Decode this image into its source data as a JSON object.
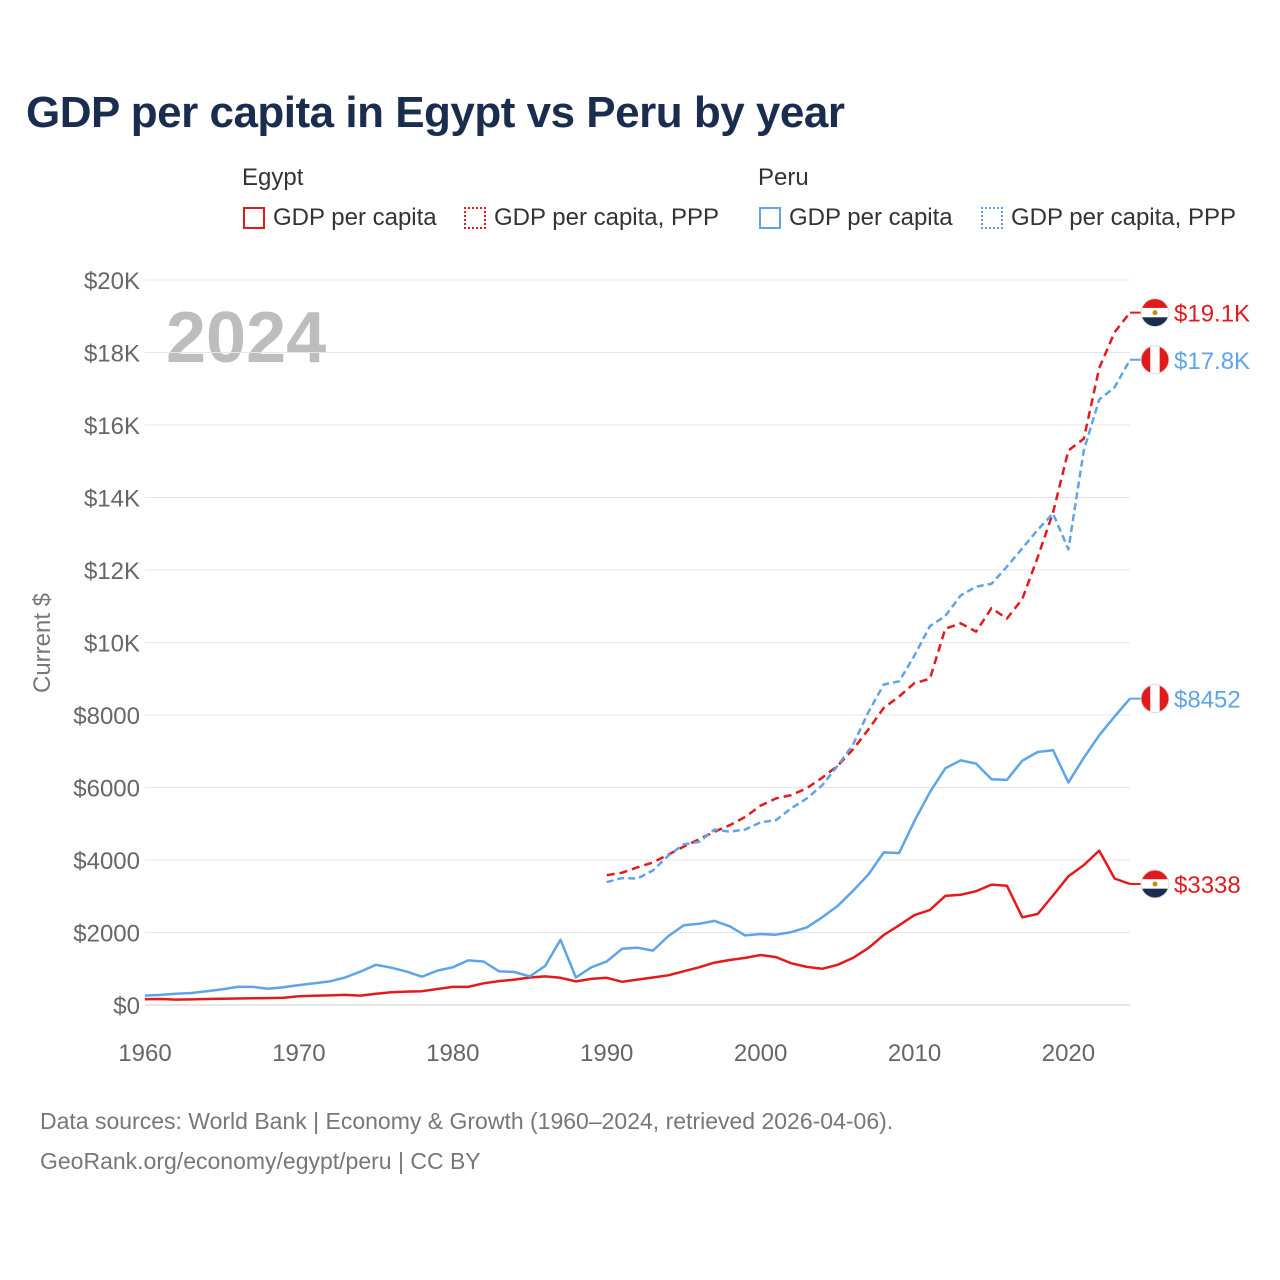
{
  "title": "GDP per capita in Egypt vs Peru by year",
  "legend": {
    "groups": [
      {
        "name": "Egypt",
        "items": [
          {
            "label": "GDP per capita",
            "style": "solid",
            "color": "#e31a1c"
          },
          {
            "label": "GDP per capita, PPP",
            "style": "dotted",
            "color": "#e31a1c"
          }
        ]
      },
      {
        "name": "Peru",
        "items": [
          {
            "label": "GDP per capita",
            "style": "solid",
            "color": "#5ea4e6"
          },
          {
            "label": "GDP per capita, PPP",
            "style": "dotted",
            "color": "#5ea4e6"
          }
        ]
      }
    ]
  },
  "year_watermark": "2024",
  "footer": {
    "line1": "Data sources: World Bank | Economy & Growth (1960–2024, retrieved 2026-04-06).",
    "line2": "GeoRank.org/economy/egypt/peru | CC BY"
  },
  "colors": {
    "egypt": "#e31a1c",
    "peru": "#5ea4e6",
    "title": "#1b2d4f"
  },
  "chart_data": {
    "type": "line",
    "ylabel": "Current $",
    "xlabel": "",
    "xlim": [
      1960,
      2024
    ],
    "ylim": [
      0,
      20000
    ],
    "x_ticks": [
      1960,
      1970,
      1980,
      1990,
      2000,
      2010,
      2020
    ],
    "x_tick_labels": [
      "1960",
      "1970",
      "1980",
      "1990",
      "2000",
      "2010",
      "2020"
    ],
    "y_ticks": [
      0,
      2000,
      4000,
      6000,
      8000,
      10000,
      12000,
      14000,
      16000,
      18000,
      20000
    ],
    "y_tick_labels": [
      "$0",
      "$2000",
      "$4000",
      "$6000",
      "$8000",
      "$10K",
      "$12K",
      "$14K",
      "$16K",
      "$18K",
      "$20K"
    ],
    "grid": true,
    "series": [
      {
        "name": "Egypt GDP per capita",
        "country": "Egypt",
        "style": "solid",
        "color": "#e31a1c",
        "end_label": "$3338",
        "flag": "egypt",
        "x": [
          1960,
          1961,
          1962,
          1963,
          1964,
          1965,
          1966,
          1967,
          1968,
          1969,
          1970,
          1971,
          1972,
          1973,
          1974,
          1975,
          1976,
          1977,
          1978,
          1979,
          1980,
          1981,
          1982,
          1983,
          1984,
          1985,
          1986,
          1987,
          1988,
          1989,
          1990,
          1991,
          1992,
          1993,
          1994,
          1995,
          1996,
          1997,
          1998,
          1999,
          2000,
          2001,
          2002,
          2003,
          2004,
          2005,
          2006,
          2007,
          2008,
          2009,
          2010,
          2011,
          2012,
          2013,
          2014,
          2015,
          2016,
          2017,
          2018,
          2019,
          2020,
          2021,
          2022,
          2023,
          2024
        ],
        "values": [
          160,
          165,
          150,
          155,
          165,
          170,
          180,
          185,
          190,
          200,
          240,
          255,
          265,
          280,
          260,
          310,
          350,
          370,
          380,
          440,
          500,
          500,
          600,
          660,
          700,
          760,
          790,
          750,
          650,
          720,
          750,
          640,
          700,
          760,
          820,
          930,
          1040,
          1170,
          1240,
          1300,
          1380,
          1320,
          1150,
          1050,
          1000,
          1110,
          1300,
          1570,
          1930,
          2200,
          2480,
          2620,
          3010,
          3040,
          3140,
          3320,
          3290,
          2420,
          2510,
          3020,
          3550,
          3860,
          4260,
          3490,
          3338
        ]
      },
      {
        "name": "Egypt GDP per capita, PPP",
        "country": "Egypt",
        "style": "dashed",
        "color": "#e31a1c",
        "end_label": "$19.1K",
        "flag": "egypt",
        "x": [
          1990,
          1991,
          1992,
          1993,
          1994,
          1995,
          1996,
          1997,
          1998,
          1999,
          2000,
          2001,
          2002,
          2003,
          2004,
          2005,
          2006,
          2007,
          2008,
          2009,
          2010,
          2011,
          2012,
          2013,
          2014,
          2015,
          2016,
          2017,
          2018,
          2019,
          2020,
          2021,
          2022,
          2023,
          2024
        ],
        "values": [
          3580,
          3650,
          3800,
          3930,
          4150,
          4370,
          4570,
          4780,
          4960,
          5190,
          5500,
          5700,
          5790,
          5980,
          6270,
          6600,
          7050,
          7600,
          8200,
          8510,
          8880,
          9000,
          10380,
          10530,
          10300,
          10950,
          10660,
          11200,
          12350,
          13580,
          15300,
          15620,
          17570,
          18560,
          19100
        ]
      },
      {
        "name": "Peru GDP per capita",
        "country": "Peru",
        "style": "solid",
        "color": "#5ea4e6",
        "end_label": "$8452",
        "flag": "peru",
        "x": [
          1960,
          1961,
          1962,
          1963,
          1964,
          1965,
          1966,
          1967,
          1968,
          1969,
          1970,
          1971,
          1972,
          1973,
          1974,
          1975,
          1976,
          1977,
          1978,
          1979,
          1980,
          1981,
          1982,
          1983,
          1984,
          1985,
          1986,
          1987,
          1988,
          1989,
          1990,
          1991,
          1992,
          1993,
          1994,
          1995,
          1996,
          1997,
          1998,
          1999,
          2000,
          2001,
          2002,
          2003,
          2004,
          2005,
          2006,
          2007,
          2008,
          2009,
          2010,
          2011,
          2012,
          2013,
          2014,
          2015,
          2016,
          2017,
          2018,
          2019,
          2020,
          2021,
          2022,
          2023,
          2024
        ],
        "values": [
          260,
          280,
          310,
          330,
          380,
          430,
          500,
          500,
          450,
          490,
          550,
          600,
          650,
          760,
          920,
          1110,
          1030,
          920,
          780,
          950,
          1040,
          1230,
          1200,
          930,
          910,
          790,
          1080,
          1800,
          760,
          1040,
          1200,
          1550,
          1580,
          1500,
          1900,
          2200,
          2240,
          2320,
          2170,
          1920,
          1960,
          1940,
          2010,
          2140,
          2420,
          2730,
          3150,
          3600,
          4210,
          4190,
          5080,
          5870,
          6530,
          6750,
          6660,
          6230,
          6210,
          6740,
          6980,
          7030,
          6140,
          6820,
          7440,
          7960,
          8452
        ]
      },
      {
        "name": "Peru GDP per capita, PPP",
        "country": "Peru",
        "style": "dashed",
        "color": "#5ea4e6",
        "end_label": "$17.8K",
        "flag": "peru",
        "x": [
          1990,
          1991,
          1992,
          1993,
          1994,
          1995,
          1996,
          1997,
          1998,
          1999,
          2000,
          2001,
          2002,
          2003,
          2004,
          2005,
          2006,
          2007,
          2008,
          2009,
          2010,
          2011,
          2012,
          2013,
          2014,
          2015,
          2016,
          2017,
          2018,
          2019,
          2020,
          2021,
          2022,
          2023,
          2024
        ],
        "values": [
          3390,
          3500,
          3490,
          3710,
          4120,
          4430,
          4500,
          4840,
          4780,
          4840,
          5040,
          5100,
          5430,
          5700,
          6060,
          6600,
          7180,
          8080,
          8840,
          8930,
          9640,
          10450,
          10730,
          11300,
          11540,
          11620,
          12090,
          12600,
          13110,
          13560,
          12570,
          15300,
          16700,
          17040,
          17800
        ]
      }
    ]
  }
}
